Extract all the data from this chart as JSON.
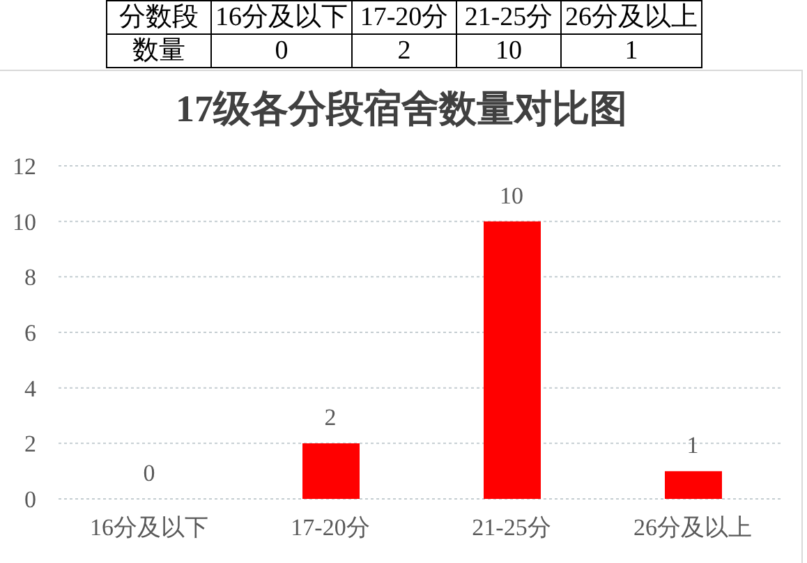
{
  "chart_data": [
    {
      "type": "other",
      "annotations": [
        "分数段",
        "16分及以下",
        "17-20分",
        "21-25分",
        "26分及以上",
        "数量",
        "0",
        "2",
        "10",
        "1"
      ]
    },
    {
      "type": "bar",
      "title": "17级各分段宿舍数量对比图",
      "categories": [
        "16分及以下",
        "17-20分",
        "21-25分",
        "26分及以上"
      ],
      "values": [
        0,
        2,
        10,
        1
      ],
      "color": "#ff0000",
      "ylim": [
        0,
        12
      ],
      "yticks": [
        0,
        2,
        4,
        6,
        8,
        10,
        12
      ],
      "grid": "y",
      "data_labels": true
    }
  ]
}
